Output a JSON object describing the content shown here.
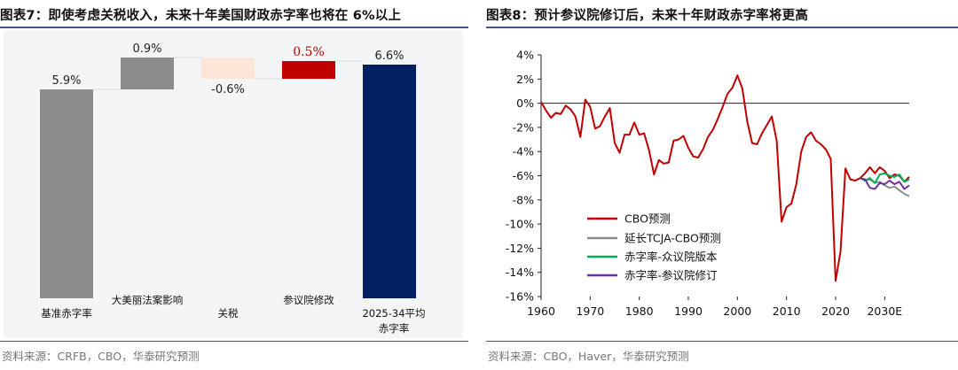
{
  "left": {
    "title": "图表7：即使考虑关税收入，未来十年美国财政赤字率也将在 6%以上",
    "source": "资料来源：CRFB，CBO，华泰研究预测"
  },
  "right": {
    "title": "图表8：预计参议院修订后，未来十年财政赤字率将更高",
    "source": "资料来源：CBO，Haver，华泰研究预测"
  },
  "colors": {
    "rule": "#3d5a8a"
  },
  "chart_data": [
    {
      "type": "bar",
      "subtype": "waterfall",
      "categories": [
        "基准赤字率",
        "大美丽法案影响",
        "关税",
        "参议院修改",
        "2025-34平均赤字率"
      ],
      "values": [
        5.9,
        0.9,
        -0.6,
        0.5,
        6.6
      ],
      "kinds": [
        "total",
        "delta",
        "delta",
        "delta",
        "total"
      ],
      "data_labels": [
        "5.9%",
        "0.9%",
        "-0.6%",
        "0.5%",
        "6.6%"
      ],
      "colors": [
        "#8c8c8c",
        "#8c8c8c",
        "#fbe5d6",
        "#c00000",
        "#002060"
      ],
      "label_colors": [
        "#222222",
        "#222222",
        "#222222",
        "#c00000",
        "#222222"
      ],
      "ylim": [
        0,
        7.5
      ],
      "grid": false,
      "title": "",
      "xlabel": "",
      "ylabel": ""
    },
    {
      "type": "line",
      "xlim": [
        1960,
        2035
      ],
      "ylim": [
        -16,
        4
      ],
      "x_ticks": [
        "1960",
        "1970",
        "1980",
        "1990",
        "2000",
        "2010",
        "2020",
        "2030E"
      ],
      "y_ticks": [
        "4%",
        "2%",
        "0%",
        "-2%",
        "-4%",
        "-6%",
        "-8%",
        "-10%",
        "-12%",
        "-14%",
        "-16%"
      ],
      "legend_position": "bottom-left",
      "grid": false,
      "title": "",
      "xlabel": "",
      "ylabel": "",
      "series": [
        {
          "name": "CBO预测",
          "color": "#c00000",
          "x": [
            1960,
            1961,
            1962,
            1963,
            1964,
            1965,
            1966,
            1967,
            1968,
            1969,
            1970,
            1971,
            1972,
            1973,
            1974,
            1975,
            1976,
            1977,
            1978,
            1979,
            1980,
            1981,
            1982,
            1983,
            1984,
            1985,
            1986,
            1987,
            1988,
            1989,
            1990,
            1991,
            1992,
            1993,
            1994,
            1995,
            1996,
            1997,
            1998,
            1999,
            2000,
            2001,
            2002,
            2003,
            2004,
            2005,
            2006,
            2007,
            2008,
            2009,
            2010,
            2011,
            2012,
            2013,
            2014,
            2015,
            2016,
            2017,
            2018,
            2019,
            2020,
            2021,
            2022,
            2023,
            2024,
            2025,
            2026,
            2027,
            2028,
            2029,
            2030,
            2031,
            2032,
            2033,
            2034,
            2035
          ],
          "y": [
            0.1,
            -0.6,
            -1.2,
            -0.8,
            -0.9,
            -0.2,
            -0.5,
            -1.1,
            -2.8,
            0.3,
            -0.3,
            -2.1,
            -1.9,
            -1.1,
            -0.4,
            -3.3,
            -4.1,
            -2.6,
            -2.6,
            -1.6,
            -2.6,
            -2.5,
            -3.9,
            -5.9,
            -4.7,
            -5.0,
            -4.9,
            -3.1,
            -3.0,
            -2.7,
            -3.7,
            -4.4,
            -4.5,
            -3.8,
            -2.8,
            -2.2,
            -1.3,
            -0.3,
            0.8,
            1.3,
            2.3,
            1.2,
            -1.5,
            -3.3,
            -3.4,
            -2.5,
            -1.8,
            -1.1,
            -3.1,
            -9.8,
            -8.6,
            -8.3,
            -6.7,
            -4.0,
            -2.8,
            -2.4,
            -3.1,
            -3.4,
            -3.8,
            -4.6,
            -14.7,
            -12.3,
            -5.4,
            -6.3,
            -6.4,
            -6.2,
            -5.8,
            -5.3,
            -5.8,
            -5.3,
            -5.6,
            -6.2,
            -5.9,
            -6.0,
            -6.5,
            -6.1
          ]
        },
        {
          "name": "延长TCJA-CBO预测",
          "color": "#8c8c8c",
          "x": [
            2025,
            2026,
            2027,
            2028,
            2029,
            2030,
            2031,
            2032,
            2033,
            2034,
            2035
          ],
          "y": [
            -6.2,
            -6.4,
            -6.3,
            -6.6,
            -6.5,
            -6.8,
            -7.0,
            -6.9,
            -7.2,
            -7.5,
            -7.7
          ]
        },
        {
          "name": "赤字率-众议院版本",
          "color": "#00b050",
          "x": [
            2025,
            2026,
            2027,
            2028,
            2029,
            2030,
            2031,
            2032,
            2033,
            2034,
            2035
          ],
          "y": [
            -6.2,
            -6.4,
            -6.2,
            -6.6,
            -5.9,
            -5.8,
            -6.0,
            -6.1,
            -5.9,
            -6.5,
            -6.3
          ]
        },
        {
          "name": "赤字率-参议院修订",
          "color": "#7030a0",
          "x": [
            2025,
            2026,
            2027,
            2028,
            2029,
            2030,
            2031,
            2032,
            2033,
            2034,
            2035
          ],
          "y": [
            -6.2,
            -6.3,
            -7.0,
            -7.1,
            -6.6,
            -6.7,
            -6.4,
            -6.7,
            -6.5,
            -7.1,
            -6.8
          ]
        }
      ]
    }
  ]
}
